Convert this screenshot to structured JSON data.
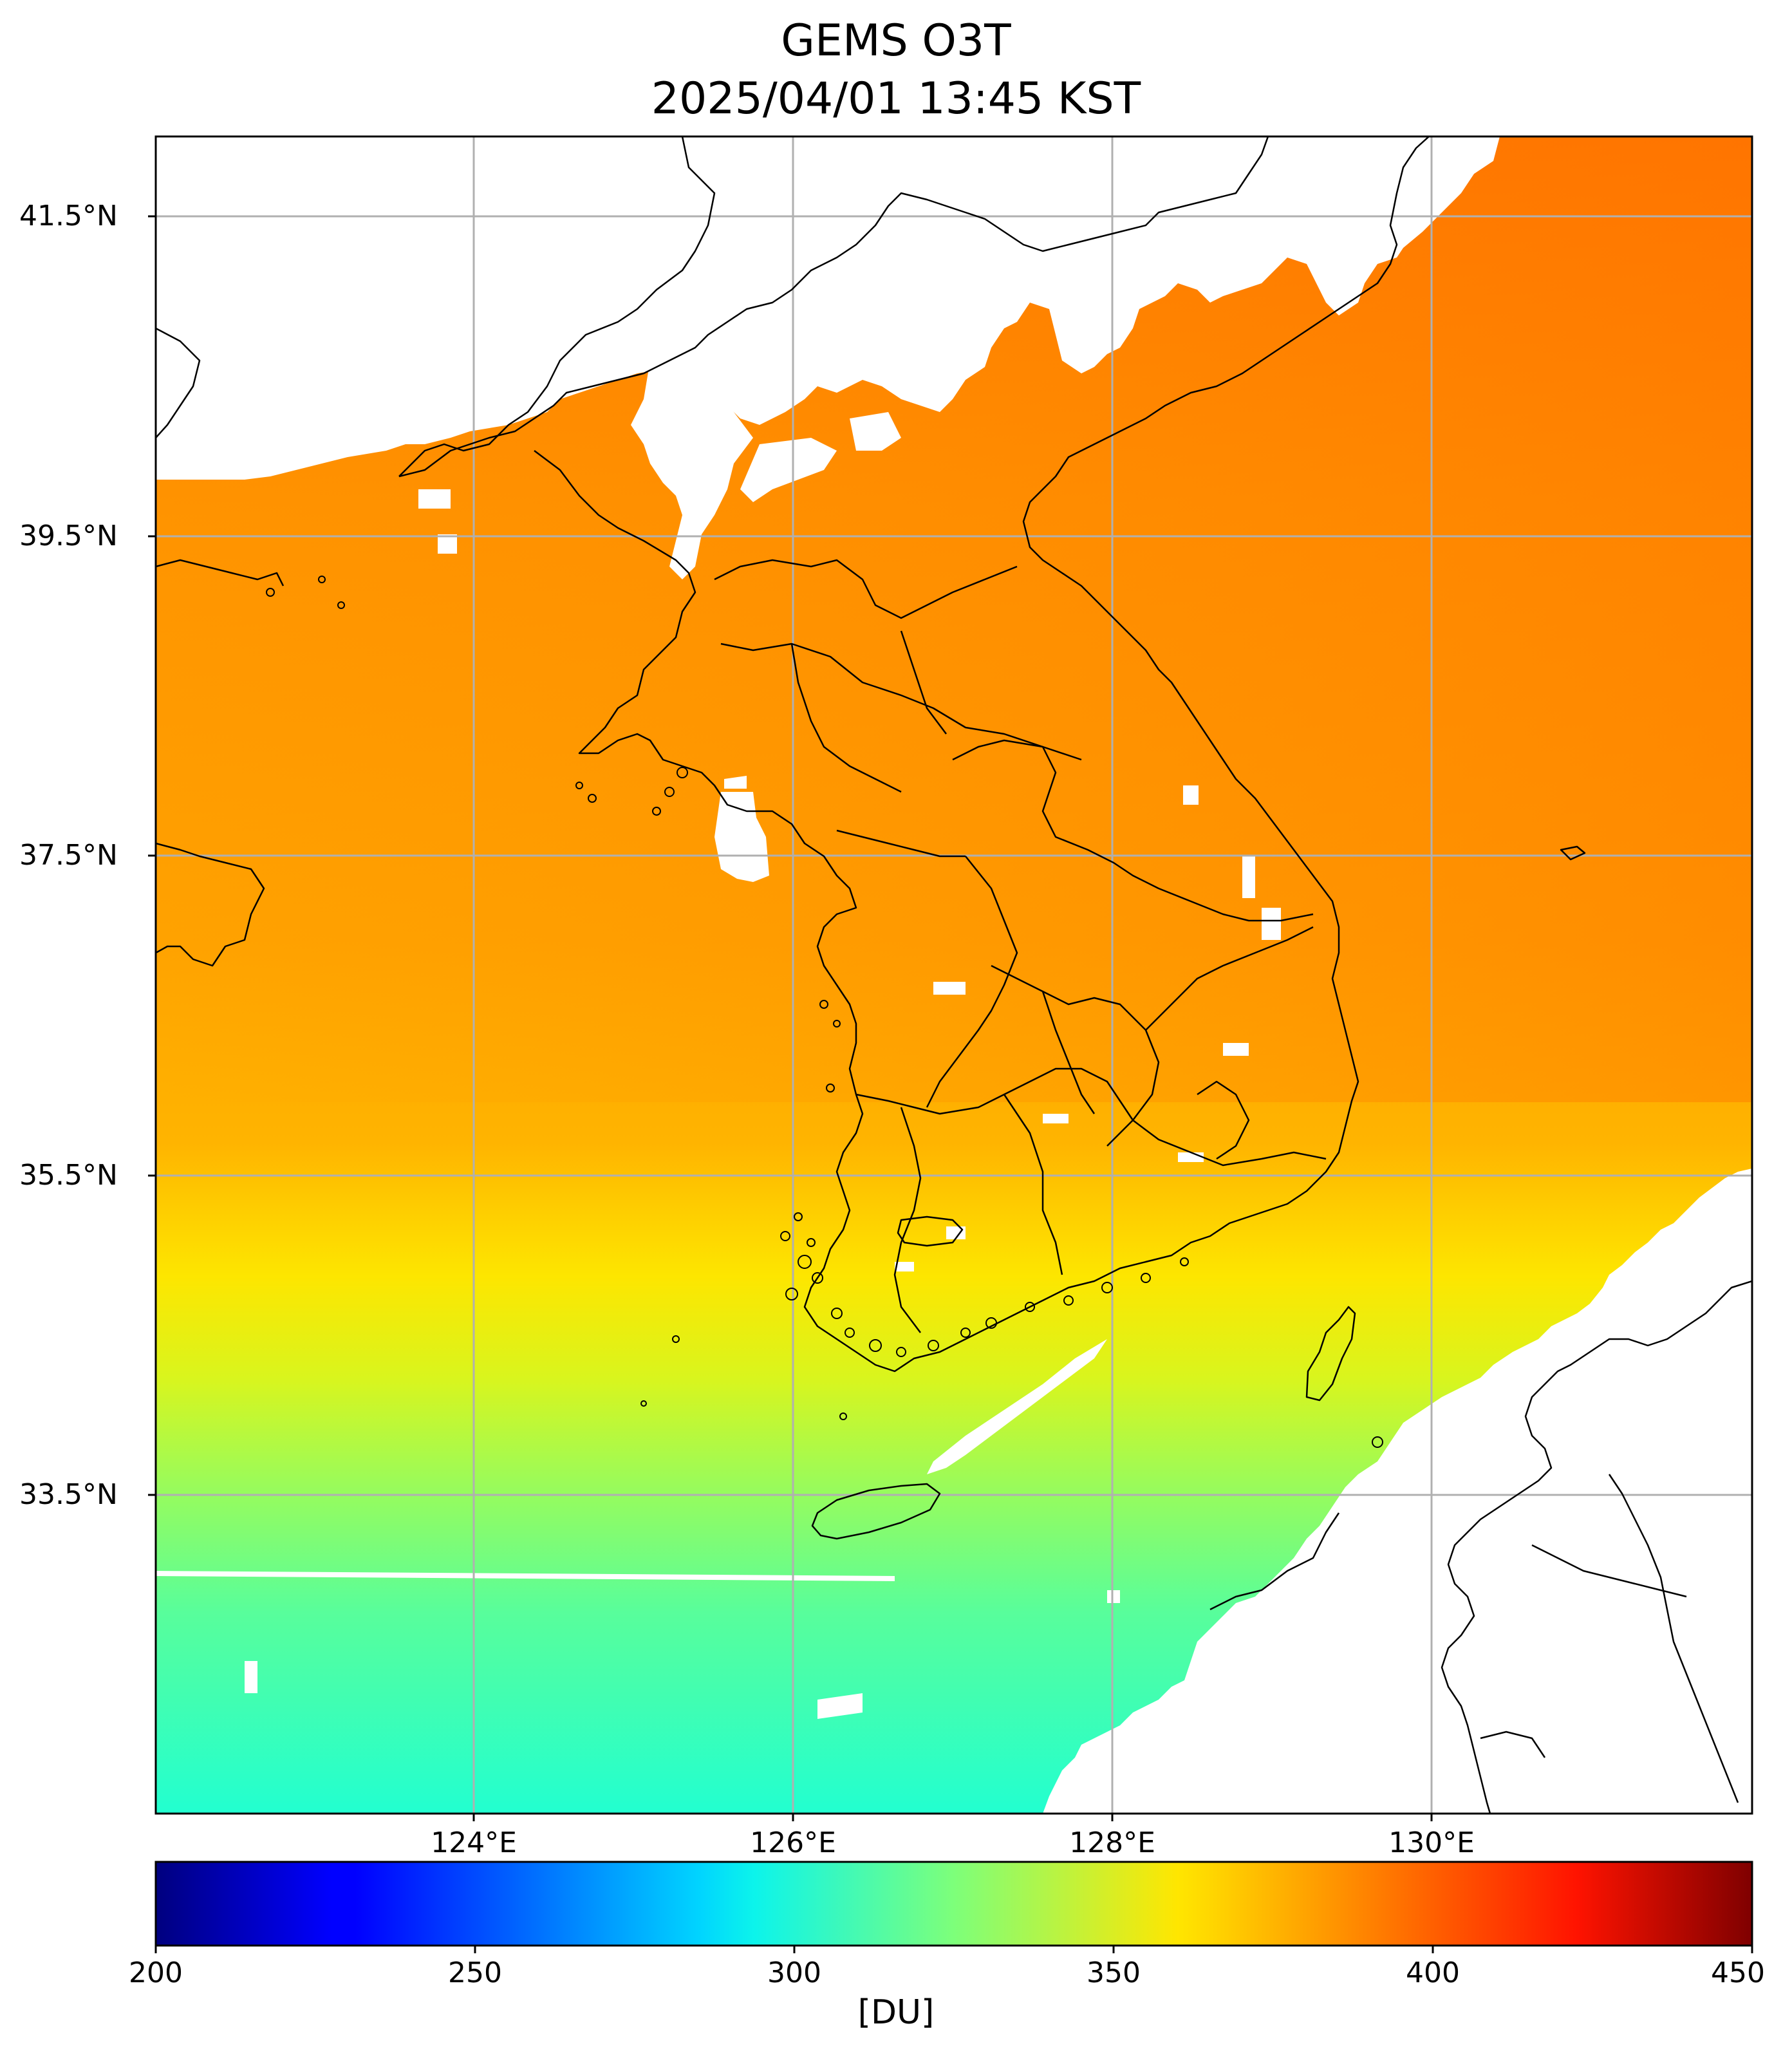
{
  "header": {
    "title_line1": "GEMS O3T",
    "title_line2": "2025/04/01 13:45 KST"
  },
  "map": {
    "lat_labels": [
      "41.5°N",
      "39.5°N",
      "37.5°N",
      "35.5°N",
      "33.5°N"
    ],
    "lon_labels": [
      "124°E",
      "126°E",
      "128°E",
      "130°E"
    ],
    "colormap": "jet",
    "gridlines": true
  },
  "colorbar": {
    "ticks": [
      "200",
      "250",
      "300",
      "350",
      "400",
      "450"
    ],
    "unit": "[DU]",
    "range": [
      200,
      450
    ]
  }
}
